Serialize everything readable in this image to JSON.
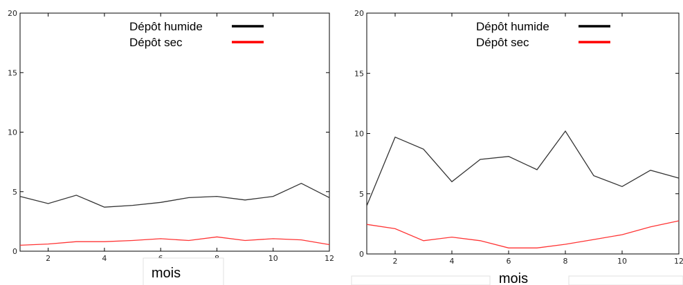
{
  "chart_data": [
    {
      "type": "line",
      "x": [
        1,
        2,
        3,
        4,
        5,
        6,
        7,
        8,
        9,
        10,
        11,
        12
      ],
      "series": [
        {
          "name": "Dépôt humide",
          "color": "#333333",
          "legend_color": "#000000",
          "values": [
            4.6,
            4.0,
            4.7,
            3.7,
            3.85,
            4.1,
            4.5,
            4.6,
            4.3,
            4.6,
            5.7,
            4.5
          ]
        },
        {
          "name": "Dépôt sec",
          "color": "#ff3333",
          "legend_color": "#ff0000",
          "values": [
            0.5,
            0.6,
            0.8,
            0.8,
            0.9,
            1.05,
            0.9,
            1.2,
            0.9,
            1.05,
            0.95,
            0.55
          ]
        }
      ],
      "xlabel": "mois",
      "xlim": [
        1,
        12
      ],
      "ylim": [
        0,
        20
      ],
      "xticks": [
        "2",
        "4",
        "6",
        "8",
        "10",
        "12"
      ],
      "yticks": [
        "0",
        "5",
        "10",
        "15",
        "20"
      ],
      "legend": "top-center",
      "grid": false
    },
    {
      "type": "line",
      "x": [
        1,
        2,
        3,
        4,
        5,
        6,
        7,
        8,
        9,
        10,
        11,
        12
      ],
      "series": [
        {
          "name": "Dépôt humide",
          "color": "#333333",
          "legend_color": "#000000",
          "values": [
            4.0,
            9.7,
            8.7,
            6.0,
            7.85,
            8.1,
            7.0,
            10.2,
            6.5,
            5.6,
            6.95,
            6.3
          ]
        },
        {
          "name": "Dépôt sec",
          "color": "#ff3333",
          "legend_color": "#ff0000",
          "values": [
            2.45,
            2.1,
            1.1,
            1.4,
            1.1,
            0.5,
            0.5,
            0.8,
            1.2,
            1.6,
            2.25,
            2.75
          ]
        }
      ],
      "xlabel": "mois",
      "xlim": [
        1,
        12
      ],
      "ylim": [
        0,
        20
      ],
      "xticks": [
        "2",
        "4",
        "6",
        "8",
        "10",
        "12"
      ],
      "yticks": [
        "0",
        "5",
        "10",
        "15",
        "20"
      ],
      "legend": "top-center",
      "grid": false
    }
  ]
}
